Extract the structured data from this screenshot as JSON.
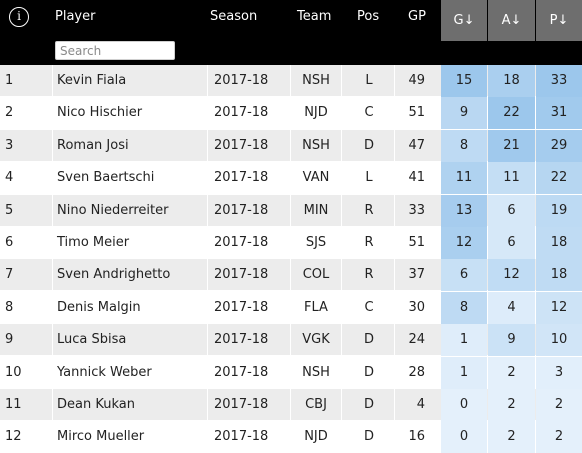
{
  "header": {
    "info_icon_glyph": "i",
    "columns": {
      "player": "Player",
      "season": "Season",
      "team": "Team",
      "pos": "Pos",
      "gp": "GP",
      "g": "G↓",
      "a": "A↓",
      "p": "P↓"
    },
    "search": {
      "placeholder": "Search",
      "value": ""
    }
  },
  "colors": {
    "header_bg": "#000000",
    "stat_header_bg": "#6e6e6e",
    "stat_heat_light": "#e4f0fb",
    "stat_heat_dark": "#9cc7ec"
  },
  "rows": [
    {
      "rank": "1",
      "player": "Kevin Fiala",
      "season": "2017-18",
      "team": "NSH",
      "pos": "L",
      "gp": "49",
      "g": "15",
      "a": "18",
      "p": "33"
    },
    {
      "rank": "2",
      "player": "Nico Hischier",
      "season": "2017-18",
      "team": "NJD",
      "pos": "C",
      "gp": "51",
      "g": "9",
      "a": "22",
      "p": "31"
    },
    {
      "rank": "3",
      "player": "Roman Josi",
      "season": "2017-18",
      "team": "NSH",
      "pos": "D",
      "gp": "47",
      "g": "8",
      "a": "21",
      "p": "29"
    },
    {
      "rank": "4",
      "player": "Sven Baertschi",
      "season": "2017-18",
      "team": "VAN",
      "pos": "L",
      "gp": "41",
      "g": "11",
      "a": "11",
      "p": "22"
    },
    {
      "rank": "5",
      "player": "Nino Niederreiter",
      "season": "2017-18",
      "team": "MIN",
      "pos": "R",
      "gp": "33",
      "g": "13",
      "a": "6",
      "p": "19"
    },
    {
      "rank": "6",
      "player": "Timo Meier",
      "season": "2017-18",
      "team": "SJS",
      "pos": "R",
      "gp": "51",
      "g": "12",
      "a": "6",
      "p": "18"
    },
    {
      "rank": "7",
      "player": "Sven Andrighetto",
      "season": "2017-18",
      "team": "COL",
      "pos": "R",
      "gp": "37",
      "g": "6",
      "a": "12",
      "p": "18"
    },
    {
      "rank": "8",
      "player": "Denis Malgin",
      "season": "2017-18",
      "team": "FLA",
      "pos": "C",
      "gp": "30",
      "g": "8",
      "a": "4",
      "p": "12"
    },
    {
      "rank": "9",
      "player": "Luca Sbisa",
      "season": "2017-18",
      "team": "VGK",
      "pos": "D",
      "gp": "24",
      "g": "1",
      "a": "9",
      "p": "10"
    },
    {
      "rank": "10",
      "player": "Yannick Weber",
      "season": "2017-18",
      "team": "NSH",
      "pos": "D",
      "gp": "28",
      "g": "1",
      "a": "2",
      "p": "3"
    },
    {
      "rank": "11",
      "player": "Dean Kukan",
      "season": "2017-18",
      "team": "CBJ",
      "pos": "D",
      "gp": "4",
      "g": "0",
      "a": "2",
      "p": "2"
    },
    {
      "rank": "12",
      "player": "Mirco Mueller",
      "season": "2017-18",
      "team": "NJD",
      "pos": "D",
      "gp": "16",
      "g": "0",
      "a": "2",
      "p": "2"
    }
  ]
}
